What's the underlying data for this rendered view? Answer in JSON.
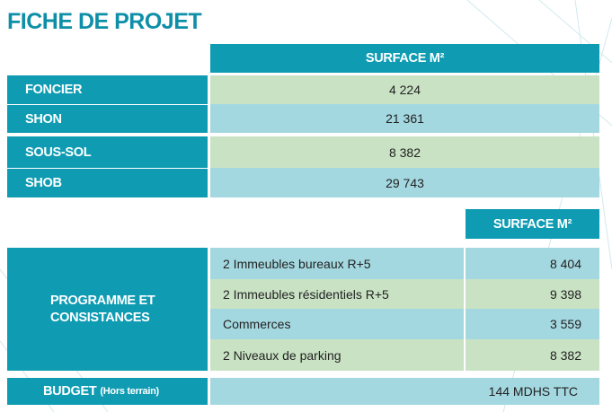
{
  "title": "FICHE DE PROJET",
  "table1": {
    "header": "SURFACE M²",
    "rows": [
      {
        "label": "FONCIER",
        "value": "4 224"
      },
      {
        "label": "SHON",
        "value": "21 361"
      },
      {
        "label": "SOUS-SOL",
        "value": "8 382"
      },
      {
        "label": "SHOB",
        "value": "29 743"
      }
    ]
  },
  "table2": {
    "header": "SURFACE M²",
    "group_label_line1": "PROGRAMME ET",
    "group_label_line2": "CONSISTANCES",
    "rows": [
      {
        "label": "2 Immeubles bureaux R+5",
        "value": "8 404"
      },
      {
        "label": "2 Immeubles résidentiels R+5",
        "value": "9 398"
      },
      {
        "label": "Commerces",
        "value": "3 559"
      },
      {
        "label": "2 Niveaux de parking",
        "value": "8 382"
      }
    ]
  },
  "budget": {
    "label": "BUDGET",
    "note": "(Hors terrain)",
    "value": "144 MDHS TTC"
  },
  "colors": {
    "accent": "#0f9cb3",
    "title": "#0e8fa8",
    "row_green": "#c9e2c4",
    "row_blue": "#a4d8e0"
  }
}
